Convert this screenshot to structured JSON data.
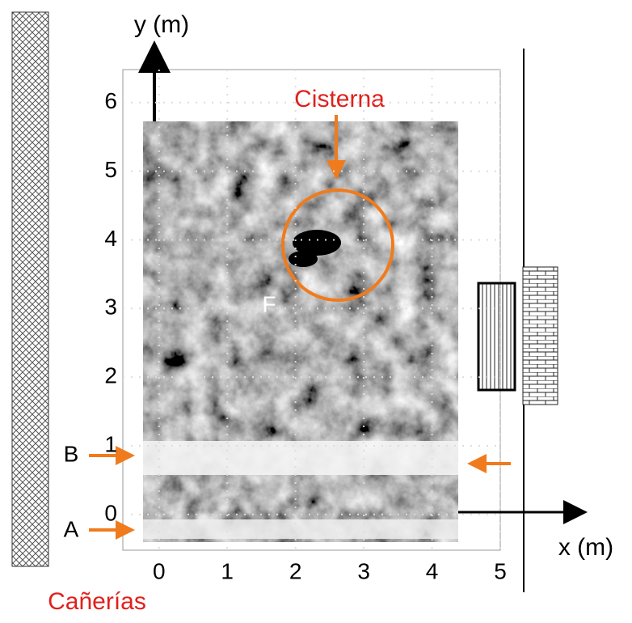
{
  "chart_data": {
    "type": "image",
    "xlabel": "x (m)",
    "ylabel": "y (m)",
    "xlim": [
      -0.53,
      5
    ],
    "ylim": [
      -0.52,
      6.48
    ],
    "xticks": [
      0,
      1,
      2,
      3,
      4,
      5
    ],
    "yticks": [
      0,
      1,
      2,
      3,
      4,
      5,
      6
    ],
    "grid": true,
    "annotations": {
      "cisterna": "Cisterna",
      "feature": "F",
      "b": "B",
      "a": "A",
      "pipes": "Cañerías"
    }
  }
}
